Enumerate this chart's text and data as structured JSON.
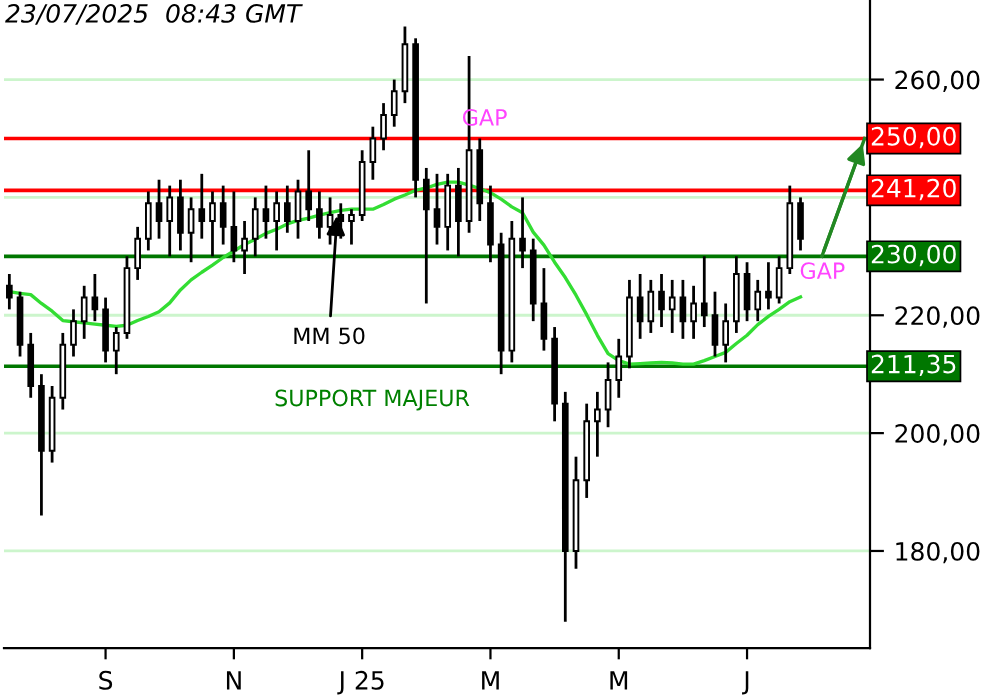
{
  "chart_data": {
    "type": "candlestick",
    "categories": [
      null,
      null,
      null,
      null,
      null,
      null,
      null,
      null,
      null,
      "S",
      null,
      null,
      null,
      null,
      null,
      null,
      null,
      null,
      null,
      null,
      null,
      "N",
      null,
      null,
      null,
      null,
      null,
      null,
      null,
      null,
      null,
      null,
      null,
      "J 25",
      null,
      null,
      null,
      null,
      null,
      null,
      null,
      null,
      null,
      null,
      null,
      "M",
      null,
      null,
      null,
      null,
      null,
      null,
      null,
      null,
      null,
      null,
      null,
      "M",
      null,
      null,
      null,
      null,
      null,
      null,
      null,
      null,
      null,
      null,
      null,
      "J",
      null,
      null,
      null,
      null,
      null,
      null,
      null,
      null,
      null,
      null,
      null
    ],
    "ohlc": [
      [
        225,
        227,
        221,
        223
      ],
      [
        223,
        224,
        213,
        215
      ],
      [
        215,
        217,
        206,
        208
      ],
      [
        208,
        210,
        186,
        197
      ],
      [
        197,
        208,
        195,
        206
      ],
      [
        206,
        217,
        204,
        215
      ],
      [
        215,
        221,
        213,
        219
      ],
      [
        219,
        225,
        216,
        223
      ],
      [
        223,
        227,
        219,
        221
      ],
      [
        221,
        223,
        212,
        214
      ],
      [
        214,
        218,
        210,
        217
      ],
      [
        217,
        230,
        216,
        228
      ],
      [
        228,
        235,
        226,
        233
      ],
      [
        233,
        241,
        231,
        239
      ],
      [
        239,
        243,
        233,
        236
      ],
      [
        236,
        242,
        230,
        240
      ],
      [
        240,
        243,
        231,
        234
      ],
      [
        234,
        240,
        229,
        238
      ],
      [
        238,
        244,
        233,
        236
      ],
      [
        236,
        241,
        230,
        239
      ],
      [
        239,
        242,
        232,
        235
      ],
      [
        235,
        241,
        229,
        231
      ],
      [
        231,
        236,
        227,
        233
      ],
      [
        233,
        240,
        230,
        238
      ],
      [
        238,
        242,
        233,
        236
      ],
      [
        236,
        241,
        231,
        239
      ],
      [
        239,
        242,
        234,
        236
      ],
      [
        236,
        243,
        233,
        241
      ],
      [
        241,
        248,
        236,
        238
      ],
      [
        238,
        241,
        233,
        235
      ],
      [
        235,
        240,
        232,
        237
      ],
      [
        237,
        239,
        233,
        236
      ],
      [
        236,
        238,
        232,
        237
      ],
      [
        237,
        248,
        236,
        246
      ],
      [
        246,
        252,
        243,
        250
      ],
      [
        250,
        256,
        248,
        254
      ],
      [
        254,
        260,
        252,
        258
      ],
      [
        258,
        269,
        256,
        266
      ],
      [
        266,
        267,
        240,
        243
      ],
      [
        243,
        245,
        222,
        238
      ],
      [
        238,
        244,
        232,
        235
      ],
      [
        235,
        244,
        231,
        242
      ],
      [
        242,
        245,
        230,
        236
      ],
      [
        236,
        264,
        234,
        248
      ],
      [
        248,
        250,
        236,
        239
      ],
      [
        239,
        242,
        229,
        232
      ],
      [
        232,
        234,
        210,
        214
      ],
      [
        214,
        236,
        212,
        233
      ],
      [
        233,
        240,
        228,
        231
      ],
      [
        231,
        233,
        219,
        222
      ],
      [
        222,
        228,
        214,
        216
      ],
      [
        216,
        218,
        202,
        205
      ],
      [
        205,
        207,
        168,
        180
      ],
      [
        180,
        196,
        177,
        192
      ],
      [
        192,
        205,
        189,
        202
      ],
      [
        202,
        207,
        196,
        204
      ],
      [
        204,
        212,
        201,
        209
      ],
      [
        209,
        216,
        206,
        213
      ],
      [
        213,
        226,
        211,
        223
      ],
      [
        223,
        227,
        216,
        219
      ],
      [
        219,
        226,
        217,
        224
      ],
      [
        224,
        227,
        218,
        221
      ],
      [
        221,
        226,
        217,
        223
      ],
      [
        223,
        226,
        216,
        219
      ],
      [
        219,
        225,
        216,
        222
      ],
      [
        222,
        230,
        218,
        220
      ],
      [
        220,
        224,
        213,
        215
      ],
      [
        215,
        222,
        212,
        219
      ],
      [
        219,
        230,
        217,
        227
      ],
      [
        227,
        229,
        219,
        221
      ],
      [
        221,
        226,
        219,
        224
      ],
      [
        224,
        229,
        221,
        223
      ],
      [
        223,
        230,
        222,
        228
      ],
      [
        228,
        242,
        227,
        239
      ],
      [
        239,
        240,
        231,
        233
      ],
      null,
      null,
      null,
      null,
      null,
      null
    ],
    "series": [
      {
        "type": "line",
        "color": "#33dd33",
        "values": [
          224,
          223.7,
          223.5,
          222,
          220.7,
          219.1,
          218.9,
          218.7,
          218.5,
          218.3,
          218.1,
          218.3,
          219.1,
          219.8,
          220.6,
          222.1,
          224.3,
          226,
          227.3,
          228.5,
          229.8,
          230.9,
          232,
          232.9,
          233.9,
          234.6,
          235.5,
          236.1,
          236.5,
          237,
          237.4,
          237.8,
          238,
          238,
          238,
          238.8,
          239.7,
          240.4,
          241.2,
          241.6,
          242.2,
          242.6,
          242.6,
          242.1,
          241.5,
          240.8,
          239.7,
          238.4,
          237.4,
          234.1,
          231.9,
          229,
          226.4,
          223.4,
          220.1,
          216.6,
          213.5,
          212.3,
          211.7,
          211.8,
          211.9,
          212,
          211.9,
          211.7,
          211.7,
          212.3,
          213,
          213.7,
          215.2,
          216.6,
          218.4,
          219.8,
          221,
          222.3,
          223.1,
          null,
          null,
          null,
          null,
          null,
          null
        ]
      },
      {
        "type": "line",
        "color": "#228822",
        "values": [
          null,
          null,
          null,
          null,
          null,
          null,
          null,
          null,
          null,
          null,
          null,
          null,
          null,
          null,
          null,
          null,
          null,
          null,
          null,
          null,
          null,
          null,
          null,
          null,
          null,
          null,
          null,
          null,
          null,
          null,
          null,
          null,
          null,
          null,
          null,
          null,
          null,
          null,
          null,
          null,
          null,
          null,
          null,
          null,
          null,
          null,
          null,
          null,
          null,
          null,
          null,
          null,
          null,
          null,
          null,
          null,
          null,
          null,
          null,
          null,
          null,
          null,
          null,
          null,
          null,
          null,
          null,
          null,
          null,
          null,
          null,
          null,
          null,
          null,
          null,
          null,
          230,
          null,
          null,
          null,
          250
        ]
      }
    ],
    "ylim": [
      163.5,
      273.5
    ],
    "yticks": [
      {
        "value": 180,
        "label": "180,00"
      },
      {
        "value": 200,
        "label": "200,00"
      },
      {
        "value": 220,
        "label": "220,00"
      },
      {
        "value": 240,
        "label": null
      },
      {
        "value": 260,
        "label": "260,00"
      }
    ],
    "grid": "y",
    "ref_lines": [
      {
        "axis": "y",
        "value": 250,
        "label": "250,00",
        "color": "#ff0000"
      },
      {
        "axis": "y",
        "value": 241.2,
        "label": "241,20",
        "color": "#ff0000"
      },
      {
        "axis": "y",
        "value": 230,
        "label": "230,00",
        "color": "#007700"
      },
      {
        "axis": "y",
        "value": 211.35,
        "label": "211,35",
        "color": "#007700"
      }
    ],
    "annotations": [
      "23/07/2025  08:43 GMT",
      {
        "text": "GAP",
        "y": 250
      },
      {
        "text": "GAP",
        "y": 230
      },
      {
        "text": "MM 50",
        "y": 237.8
      },
      "SUPPORT MAJEUR"
    ]
  }
}
